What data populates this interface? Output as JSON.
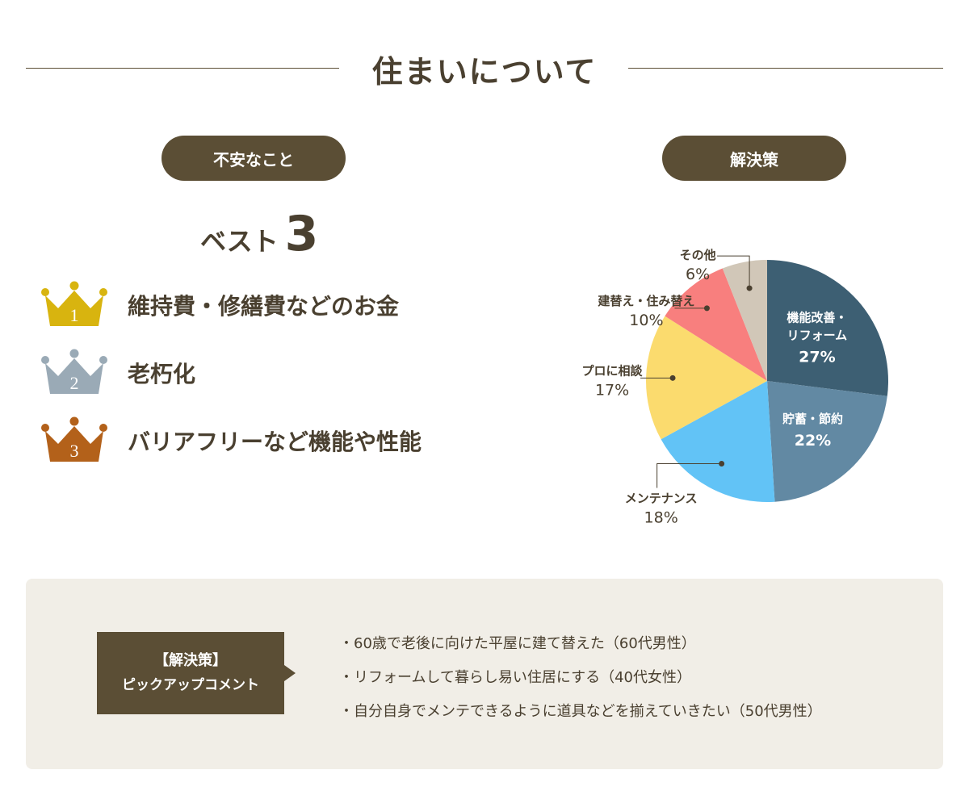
{
  "page_title": "住まいについて",
  "worries": {
    "heading": "不安なこと",
    "best_word": "ベスト",
    "best_num": "3",
    "ranks": [
      {
        "rank": "1",
        "label": "維持費・修繕費などのお金",
        "color": "#d8b40f"
      },
      {
        "rank": "2",
        "label": "老朽化",
        "color": "#9aaab6"
      },
      {
        "rank": "3",
        "label": "バリアフリーなど機能や性能",
        "color": "#b3611a"
      }
    ]
  },
  "solutions": {
    "heading": "解決策"
  },
  "chart_data": {
    "type": "pie",
    "start": "12 o'clock",
    "direction": "clockwise",
    "slices": [
      {
        "label": "機能改善・リフォーム",
        "value": 27,
        "value_label": "27%",
        "color": "#3d5f73",
        "label_inside": true
      },
      {
        "label": "貯蓄・節約",
        "value": 22,
        "value_label": "22%",
        "color": "#6289a3",
        "label_inside": true
      },
      {
        "label": "メンテナンス",
        "value": 18,
        "value_label": "18%",
        "color": "#62c3f6",
        "label_inside": false
      },
      {
        "label": "プロに相談",
        "value": 17,
        "value_label": "17%",
        "color": "#fbdb6e",
        "label_inside": false
      },
      {
        "label": "建替え・住み替え",
        "value": 10,
        "value_label": "10%",
        "color": "#f87f7e",
        "label_inside": false
      },
      {
        "label": "その他",
        "value": 6,
        "value_label": "6%",
        "color": "#d1c7b8",
        "label_inside": false
      }
    ]
  },
  "comments": {
    "box_title": "【解決策】",
    "box_subtitle": "ピックアップコメント",
    "items": [
      "・60歳で老後に向けた平屋に建て替えた（60代男性）",
      "・リフォームして暮らし易い住居にする（40代女性）",
      "・自分自身でメンテできるように道具などを揃えていきたい（50代男性）"
    ]
  }
}
